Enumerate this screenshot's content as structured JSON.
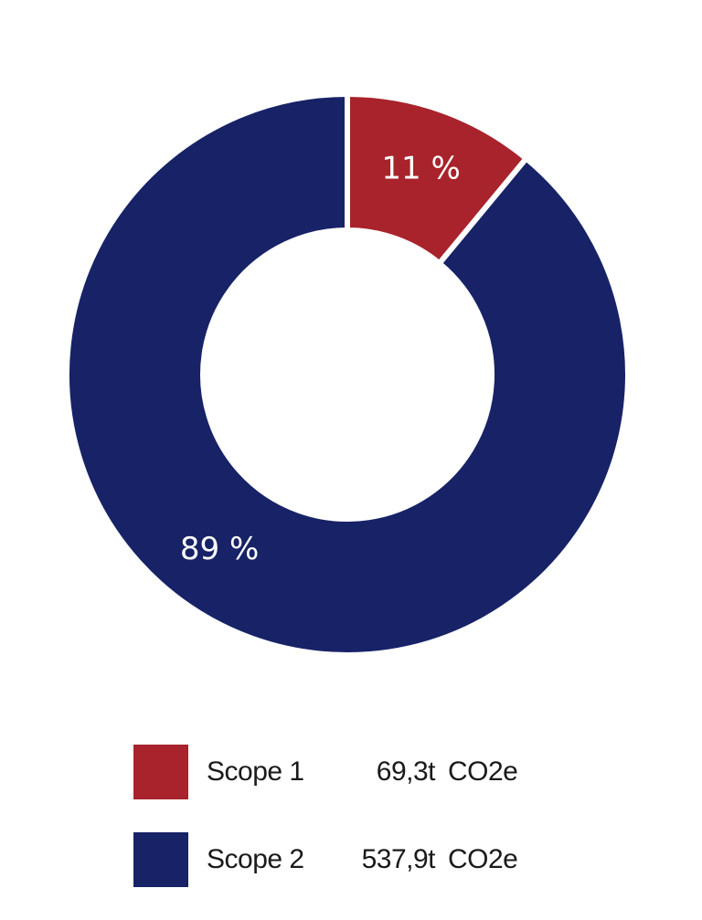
{
  "chart_data": {
    "type": "pie",
    "donut": true,
    "title": "",
    "slices": [
      {
        "name": "Scope 1",
        "percent": 11,
        "label": "11 %",
        "value": "69,3t",
        "unit": "CO2e",
        "color": "#a8232b"
      },
      {
        "name": "Scope 2",
        "percent": 89,
        "label": "89 %",
        "value": "537,9t",
        "unit": "CO2e",
        "color": "#172366"
      }
    ],
    "legend_placement": "bottom"
  }
}
